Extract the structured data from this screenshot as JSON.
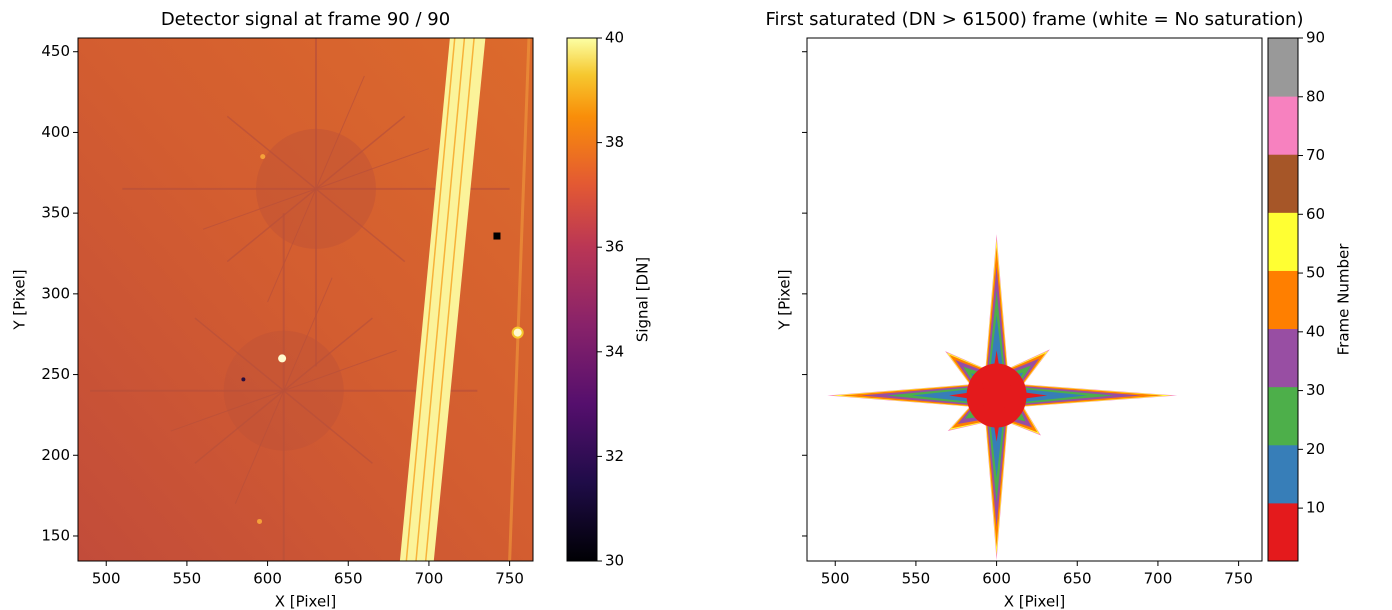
{
  "chart_data": [
    {
      "type": "image",
      "title": "Detector signal at frame 90 / 90",
      "xlabel": "X [Pixel]",
      "ylabel": "Y [Pixel]",
      "xlim": [
        482.5,
        764.5
      ],
      "ylim": [
        134.5,
        458.5
      ],
      "xticks": [
        500,
        550,
        600,
        650,
        700,
        750
      ],
      "yticks": [
        150,
        200,
        250,
        300,
        350,
        400,
        450
      ],
      "show_ytick_labels": true,
      "colorbar": {
        "label": "Signal [DN]",
        "cmap": "inferno",
        "lim": [
          30,
          40
        ],
        "ticks": [
          30,
          32,
          34,
          36,
          38,
          40
        ]
      }
    },
    {
      "type": "image",
      "title": "First saturated (DN > 61500) frame (white = No saturation)",
      "xlabel": "X [Pixel]",
      "ylabel": "Y [Pixel]",
      "xlim": [
        482.5,
        764.5
      ],
      "ylim": [
        134.5,
        458.5
      ],
      "xticks": [
        500,
        550,
        600,
        650,
        700,
        750
      ],
      "yticks": [
        150,
        200,
        250,
        300,
        350,
        400,
        450
      ],
      "show_ytick_labels": false,
      "colorbar": {
        "label": "Frame Number",
        "cmap": "Set1",
        "lim": [
          1,
          90
        ],
        "ticks": [
          10,
          20,
          30,
          40,
          50,
          60,
          70,
          80,
          90
        ],
        "colors": [
          "#e41a1c",
          "#377eb8",
          "#4daf4a",
          "#984ea3",
          "#ff7f00",
          "#ffff33",
          "#a65628",
          "#f781bf",
          "#999999"
        ]
      }
    }
  ]
}
